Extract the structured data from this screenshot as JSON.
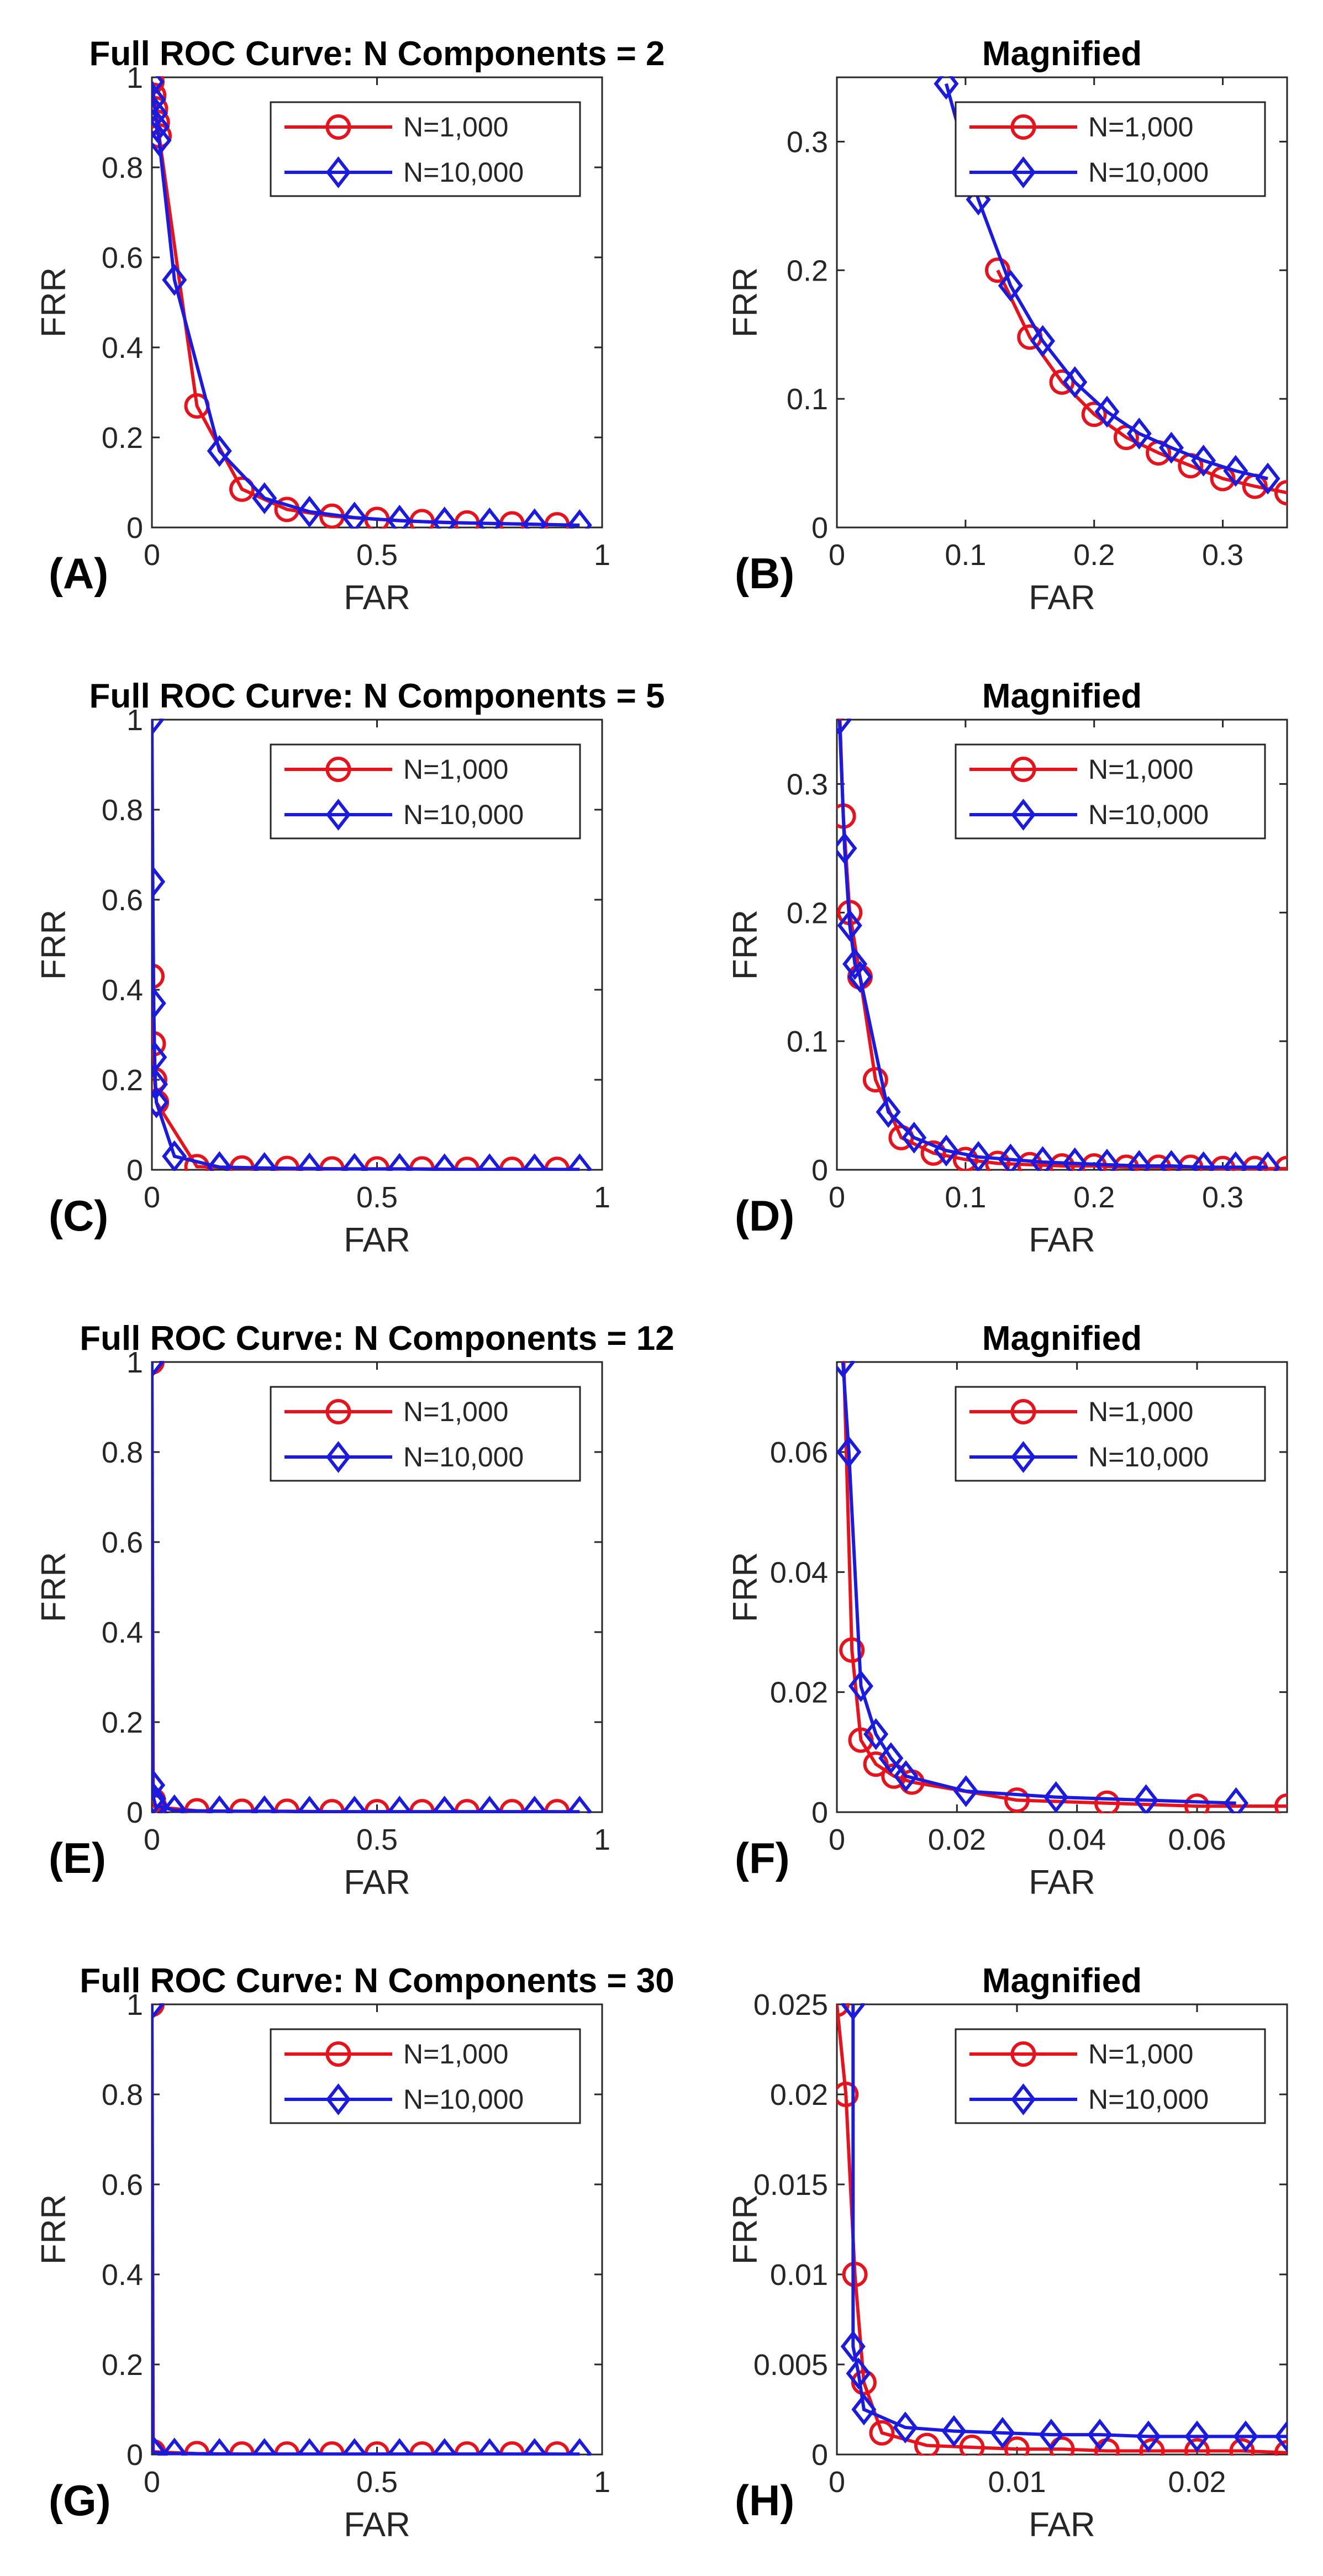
{
  "chart_data": [
    {
      "id": "A",
      "type": "line",
      "title": "Full ROC Curve: N Components = 2",
      "panel_label": "(A)",
      "xlabel": "FAR",
      "ylabel": "FRR",
      "xlim": [
        0,
        1
      ],
      "ylim": [
        0,
        1
      ],
      "xticks": [
        0,
        0.5,
        1
      ],
      "xtick_labels": [
        "0",
        "0.5",
        "1"
      ],
      "yticks": [
        0,
        0.2,
        0.4,
        0.6,
        0.8,
        1
      ],
      "ytick_labels": [
        "0",
        "0.2",
        "0.4",
        "0.6",
        "0.8",
        "1"
      ],
      "series": [
        {
          "name": "N=1,000",
          "color": "#e8121c",
          "marker": "circle",
          "x": [
            0,
            0.004,
            0.008,
            0.012,
            0.016,
            0.1,
            0.2,
            0.3,
            0.4,
            0.5,
            0.6,
            0.7,
            0.8,
            0.9
          ],
          "y": [
            0.99,
            0.96,
            0.93,
            0.9,
            0.87,
            0.27,
            0.085,
            0.04,
            0.025,
            0.018,
            0.013,
            0.01,
            0.008,
            0.006
          ]
        },
        {
          "name": "N=10,000",
          "color": "#1a1ae0",
          "marker": "diamond",
          "x": [
            0,
            0.004,
            0.008,
            0.012,
            0.016,
            0.05,
            0.15,
            0.25,
            0.35,
            0.45,
            0.55,
            0.65,
            0.75,
            0.85,
            0.95
          ],
          "y": [
            0.99,
            0.95,
            0.92,
            0.89,
            0.86,
            0.55,
            0.17,
            0.065,
            0.035,
            0.022,
            0.015,
            0.011,
            0.009,
            0.007,
            0.005
          ]
        }
      ]
    },
    {
      "id": "B",
      "type": "line",
      "title": "Magnified",
      "panel_label": "(B)",
      "xlabel": "FAR",
      "ylabel": "FRR",
      "xlim": [
        0,
        0.35
      ],
      "ylim": [
        0,
        0.35
      ],
      "xticks": [
        0,
        0.1,
        0.2,
        0.3
      ],
      "xtick_labels": [
        "0",
        "0.1",
        "0.2",
        "0.3"
      ],
      "yticks": [
        0,
        0.1,
        0.2,
        0.3
      ],
      "ytick_labels": [
        "0",
        "0.1",
        "0.2",
        "0.3"
      ],
      "series": [
        {
          "name": "N=1,000",
          "color": "#e8121c",
          "marker": "circle",
          "x": [
            0.125,
            0.15,
            0.175,
            0.2,
            0.225,
            0.25,
            0.275,
            0.3,
            0.325,
            0.35
          ],
          "y": [
            0.2,
            0.148,
            0.113,
            0.088,
            0.07,
            0.058,
            0.048,
            0.038,
            0.032,
            0.027
          ]
        },
        {
          "name": "N=10,000",
          "color": "#1a1ae0",
          "marker": "diamond",
          "x": [
            0.085,
            0.11,
            0.135,
            0.16,
            0.185,
            0.21,
            0.235,
            0.26,
            0.285,
            0.31,
            0.335
          ],
          "y": [
            0.345,
            0.255,
            0.188,
            0.145,
            0.113,
            0.09,
            0.073,
            0.062,
            0.052,
            0.044,
            0.038
          ]
        }
      ]
    },
    {
      "id": "C",
      "type": "line",
      "title": "Full ROC Curve: N Components = 5",
      "panel_label": "(C)",
      "xlabel": "FAR",
      "ylabel": "FRR",
      "xlim": [
        0,
        1
      ],
      "ylim": [
        0,
        1
      ],
      "xticks": [
        0,
        0.5,
        1
      ],
      "xtick_labels": [
        "0",
        "0.5",
        "1"
      ],
      "yticks": [
        0,
        0.2,
        0.4,
        0.6,
        0.8,
        1
      ],
      "ytick_labels": [
        "0",
        "0.2",
        "0.4",
        "0.6",
        "0.8",
        "1"
      ],
      "series": [
        {
          "name": "N=1,000",
          "color": "#e8121c",
          "marker": "circle",
          "x": [
            0,
            0.003,
            0.006,
            0.01,
            0.1,
            0.2,
            0.3,
            0.4,
            0.5,
            0.6,
            0.7,
            0.8,
            0.9
          ],
          "y": [
            0.43,
            0.28,
            0.2,
            0.15,
            0.007,
            0.004,
            0.003,
            0.002,
            0.002,
            0.002,
            0.001,
            0.001,
            0.001
          ]
        },
        {
          "name": "N=10,000",
          "color": "#1a1ae0",
          "marker": "diamond",
          "x": [
            0,
            0.002,
            0.004,
            0.006,
            0.008,
            0.01,
            0.05,
            0.15,
            0.25,
            0.35,
            0.45,
            0.55,
            0.65,
            0.75,
            0.85,
            0.95
          ],
          "y": [
            1.0,
            0.64,
            0.37,
            0.25,
            0.19,
            0.15,
            0.03,
            0.006,
            0.004,
            0.003,
            0.002,
            0.002,
            0.001,
            0.001,
            0.001,
            0.001
          ]
        }
      ]
    },
    {
      "id": "D",
      "type": "line",
      "title": "Magnified",
      "panel_label": "(D)",
      "xlabel": "FAR",
      "ylabel": "FRR",
      "xlim": [
        0,
        0.35
      ],
      "ylim": [
        0,
        0.35
      ],
      "xticks": [
        0,
        0.1,
        0.2,
        0.3
      ],
      "xtick_labels": [
        "0",
        "0.1",
        "0.2",
        "0.3"
      ],
      "yticks": [
        0,
        0.1,
        0.2,
        0.3
      ],
      "ytick_labels": [
        "0",
        "0.1",
        "0.2",
        "0.3"
      ],
      "series": [
        {
          "name": "N=1,000",
          "color": "#e8121c",
          "marker": "circle",
          "x": [
            0.002,
            0.005,
            0.01,
            0.018,
            0.03,
            0.05,
            0.075,
            0.1,
            0.125,
            0.15,
            0.175,
            0.2,
            0.225,
            0.25,
            0.275,
            0.3,
            0.325,
            0.35
          ],
          "y": [
            0.36,
            0.275,
            0.2,
            0.15,
            0.07,
            0.025,
            0.013,
            0.008,
            0.005,
            0.004,
            0.003,
            0.003,
            0.002,
            0.002,
            0.002,
            0.001,
            0.001,
            0.001
          ]
        },
        {
          "name": "N=10,000",
          "color": "#1a1ae0",
          "marker": "diamond",
          "x": [
            0.002,
            0.006,
            0.01,
            0.014,
            0.018,
            0.04,
            0.06,
            0.085,
            0.11,
            0.135,
            0.16,
            0.185,
            0.21,
            0.235,
            0.26,
            0.285,
            0.31,
            0.335
          ],
          "y": [
            0.35,
            0.25,
            0.19,
            0.16,
            0.15,
            0.045,
            0.025,
            0.015,
            0.01,
            0.008,
            0.006,
            0.005,
            0.004,
            0.003,
            0.003,
            0.002,
            0.002,
            0.002
          ]
        }
      ]
    },
    {
      "id": "E",
      "type": "line",
      "title": "Full ROC Curve: N Components = 12",
      "panel_label": "(E)",
      "xlabel": "FAR",
      "ylabel": "FRR",
      "xlim": [
        0,
        1
      ],
      "ylim": [
        0,
        1
      ],
      "xticks": [
        0,
        0.5,
        1
      ],
      "xtick_labels": [
        "0",
        "0.5",
        "1"
      ],
      "yticks": [
        0,
        0.2,
        0.4,
        0.6,
        0.8,
        1
      ],
      "ytick_labels": [
        "0",
        "0.2",
        "0.4",
        "0.6",
        "0.8",
        "1"
      ],
      "series": [
        {
          "name": "N=1,000",
          "color": "#e8121c",
          "marker": "circle",
          "x": [
            0,
            0.003,
            0.006,
            0.1,
            0.2,
            0.3,
            0.4,
            0.5,
            0.6,
            0.7,
            0.8,
            0.9
          ],
          "y": [
            1.0,
            0.027,
            0.012,
            0.003,
            0.002,
            0.002,
            0.001,
            0.001,
            0.001,
            0.001,
            0.001,
            0.001
          ]
        },
        {
          "name": "N=10,000",
          "color": "#1a1ae0",
          "marker": "diamond",
          "x": [
            0,
            0.002,
            0.004,
            0.008,
            0.05,
            0.15,
            0.25,
            0.35,
            0.45,
            0.55,
            0.65,
            0.75,
            0.85,
            0.95
          ],
          "y": [
            1.0,
            0.06,
            0.03,
            0.015,
            0.004,
            0.002,
            0.002,
            0.001,
            0.001,
            0.001,
            0.001,
            0.001,
            0.001,
            0.001
          ]
        }
      ]
    },
    {
      "id": "F",
      "type": "line",
      "title": "Magnified",
      "panel_label": "(F)",
      "xlabel": "FAR",
      "ylabel": "FRR",
      "xlim": [
        0,
        0.075
      ],
      "ylim": [
        0,
        0.075
      ],
      "xticks": [
        0,
        0.02,
        0.04,
        0.06
      ],
      "xtick_labels": [
        "0",
        "0.02",
        "0.04",
        "0.06"
      ],
      "yticks": [
        0,
        0.02,
        0.04,
        0.06
      ],
      "ytick_labels": [
        "0",
        "0.02",
        "0.04",
        "0.06"
      ],
      "series": [
        {
          "name": "N=1,000",
          "color": "#e8121c",
          "marker": "circle",
          "x": [
            0.001,
            0.0025,
            0.004,
            0.0065,
            0.0095,
            0.0125,
            0.03,
            0.045,
            0.06,
            0.075
          ],
          "y": [
            0.08,
            0.027,
            0.012,
            0.008,
            0.006,
            0.005,
            0.002,
            0.0015,
            0.001,
            0.001
          ]
        },
        {
          "name": "N=10,000",
          "color": "#1a1ae0",
          "marker": "diamond",
          "x": [
            0.001,
            0.002,
            0.004,
            0.0065,
            0.009,
            0.0115,
            0.0215,
            0.0365,
            0.0515,
            0.0665
          ],
          "y": [
            0.075,
            0.06,
            0.021,
            0.013,
            0.009,
            0.006,
            0.0035,
            0.0025,
            0.002,
            0.0015
          ]
        }
      ]
    },
    {
      "id": "G",
      "type": "line",
      "title": "Full ROC Curve: N Components = 30",
      "panel_label": "(G)",
      "xlabel": "FAR",
      "ylabel": "FRR",
      "xlim": [
        0,
        1
      ],
      "ylim": [
        0,
        1
      ],
      "xticks": [
        0,
        0.5,
        1
      ],
      "xtick_labels": [
        "0",
        "0.5",
        "1"
      ],
      "yticks": [
        0,
        0.2,
        0.4,
        0.6,
        0.8,
        1
      ],
      "ytick_labels": [
        "0",
        "0.2",
        "0.4",
        "0.6",
        "0.8",
        "1"
      ],
      "series": [
        {
          "name": "N=1,000",
          "color": "#e8121c",
          "marker": "circle",
          "x": [
            0,
            0.003,
            0.1,
            0.2,
            0.3,
            0.4,
            0.5,
            0.6,
            0.7,
            0.8,
            0.9
          ],
          "y": [
            1.0,
            0.006,
            0.002,
            0.001,
            0.001,
            0.001,
            0.001,
            0.001,
            0.001,
            0.001,
            0.001
          ]
        },
        {
          "name": "N=10,000",
          "color": "#1a1ae0",
          "marker": "diamond",
          "x": [
            0,
            0.002,
            0.005,
            0.05,
            0.15,
            0.25,
            0.35,
            0.45,
            0.55,
            0.65,
            0.75,
            0.85,
            0.95
          ],
          "y": [
            1.0,
            0.008,
            0.004,
            0.002,
            0.001,
            0.001,
            0.001,
            0.001,
            0.001,
            0.001,
            0.001,
            0.001,
            0.001
          ]
        }
      ]
    },
    {
      "id": "H",
      "type": "line",
      "title": "Magnified",
      "panel_label": "(H)",
      "xlabel": "FAR",
      "ylabel": "FRR",
      "xlim": [
        0,
        0.025
      ],
      "ylim": [
        0,
        0.025
      ],
      "xticks": [
        0,
        0.01,
        0.02
      ],
      "xtick_labels": [
        "0",
        "0.01",
        "0.02"
      ],
      "yticks": [
        0,
        0.005,
        0.01,
        0.015,
        0.02,
        0.025
      ],
      "ytick_labels": [
        "0",
        "0.005",
        "0.01",
        "0.015",
        "0.02",
        "0.025"
      ],
      "series": [
        {
          "name": "N=1,000",
          "color": "#e8121c",
          "marker": "circle",
          "x": [
            0,
            0.0005,
            0.001,
            0.0015,
            0.0025,
            0.005,
            0.0075,
            0.01,
            0.0125,
            0.015,
            0.0175,
            0.02,
            0.0225,
            0.025
          ],
          "y": [
            0.025,
            0.02,
            0.01,
            0.004,
            0.0012,
            0.0005,
            0.0004,
            0.0003,
            0.0003,
            0.0002,
            0.0002,
            0.0002,
            0.0002,
            0.0001
          ]
        },
        {
          "name": "N=10,000",
          "color": "#1a1ae0",
          "marker": "diamond",
          "x": [
            0.0009,
            0.0009,
            0.0012,
            0.0015,
            0.0038,
            0.0065,
            0.0092,
            0.0119,
            0.0146,
            0.0173,
            0.02,
            0.0227,
            0.025
          ],
          "y": [
            0.025,
            0.006,
            0.0045,
            0.0025,
            0.0015,
            0.0013,
            0.0012,
            0.0011,
            0.0011,
            0.001,
            0.001,
            0.001,
            0.001
          ]
        }
      ]
    }
  ]
}
